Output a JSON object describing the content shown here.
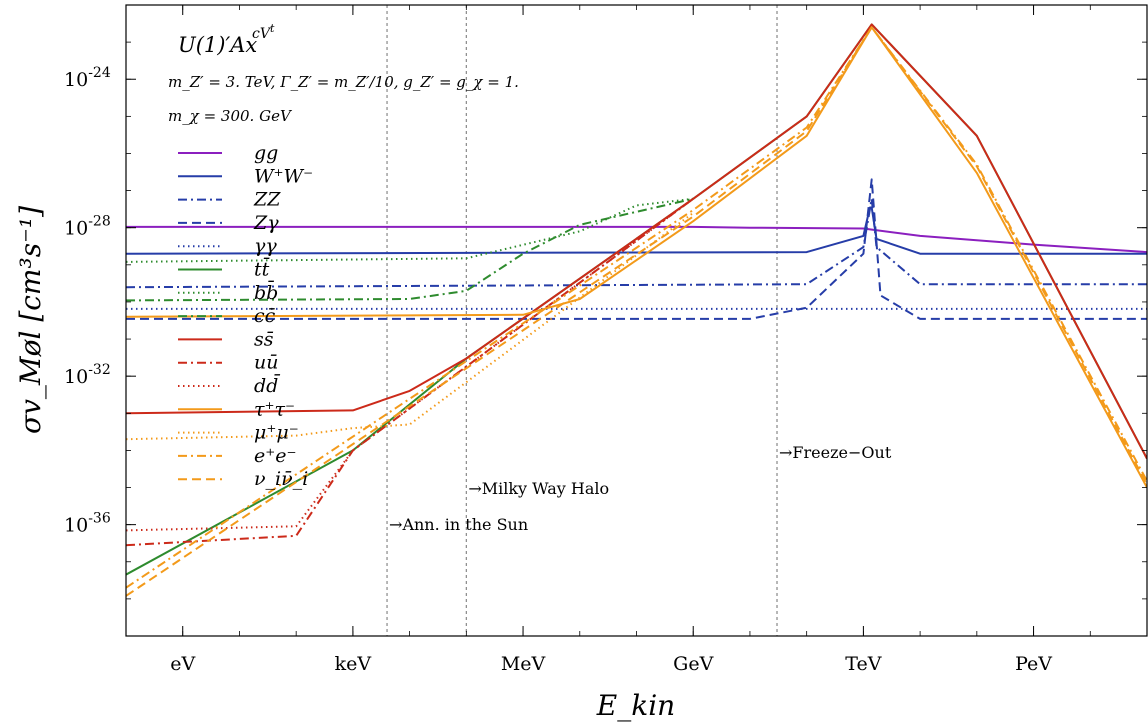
{
  "chart_data": {
    "type": "line",
    "scale": {
      "x": "log",
      "y": "log"
    },
    "xlabel": "E_kin",
    "ylabel": "σv_Møl [cm³s⁻¹]",
    "xlim": [
      0.1,
      100000000000000000
    ],
    "ylim": [
      1e-39,
      1e-22
    ],
    "x_ticks": [
      {
        "label": "eV",
        "value": 1
      },
      {
        "label": "keV",
        "value": 1000
      },
      {
        "label": "MeV",
        "value": 1000000
      },
      {
        "label": "GeV",
        "value": 1000000000
      },
      {
        "label": "TeV",
        "value": 1000000000000
      },
      {
        "label": "PeV",
        "value": 1000000000000000
      }
    ],
    "y_ticks": [
      {
        "label": "10^-24",
        "value": 1e-24
      },
      {
        "label": "10^-28",
        "value": 1e-28
      },
      {
        "label": "10^-32",
        "value": 1e-32
      },
      {
        "label": "10^-36",
        "value": 1e-36
      }
    ],
    "header": {
      "model": "U(1)′Ax",
      "model_sup": "c",
      "model_sup2": "t",
      "model_sup3": "V",
      "params1": "m_Z′ = 3. TeV, Γ_Z′ = m_Z′/10, g_Z′ = g_χ = 1.",
      "params2": "m_χ = 300. GeV"
    },
    "vlines": [
      {
        "x": 4000,
        "label": "→Ann. in the Sun"
      },
      {
        "x": 100000,
        "label": "→Milky Way Halo"
      },
      {
        "x": 30000000000,
        "label": "→Freeze−Out"
      }
    ],
    "legend_position": "left",
    "series": [
      {
        "name": "gg",
        "color": "#8b1fbf",
        "dash": "solid",
        "points": [
          [
            0.1,
            1.05e-28
          ],
          [
            1000000000,
            1.05e-28
          ],
          [
            10000000000,
            1e-28
          ],
          [
            1000000000000,
            9.5e-29
          ],
          [
            10000000000000,
            6e-29
          ],
          [
            1000000000000000,
            3.5e-29
          ],
          [
            100000000000000000,
            2.2e-29
          ]
        ]
      },
      {
        "name": "W⁺W⁻",
        "color": "#263da8",
        "dash": "solid",
        "points": [
          [
            0.1,
            2e-29
          ],
          [
            100000000000,
            2.2e-29
          ],
          [
            1000000000000,
            6e-29
          ],
          [
            1300000000000,
            3.5e-28
          ],
          [
            1400000000000,
            3.5e-28
          ],
          [
            1700000000000,
            5e-29
          ],
          [
            10000000000000,
            2e-29
          ],
          [
            100000000000000000,
            2e-29
          ]
        ]
      },
      {
        "name": "ZZ",
        "color": "#263da8",
        "dash": "dashdot",
        "points": [
          [
            0.1,
            2.5e-30
          ],
          [
            100000000000,
            3e-30
          ],
          [
            1000000000000,
            3e-29
          ],
          [
            1400000000000,
            6e-28
          ],
          [
            1700000000000,
            3e-29
          ],
          [
            10000000000000,
            3e-30
          ],
          [
            100000000000000000,
            3e-30
          ]
        ]
      },
      {
        "name": "Zγ",
        "color": "#263da8",
        "dash": "dashed",
        "points": [
          [
            0.1,
            3.5e-31
          ],
          [
            10000000000,
            3.5e-31
          ],
          [
            100000000000,
            7e-31
          ],
          [
            1000000000000,
            2e-29
          ],
          [
            1400000000000,
            2e-27
          ],
          [
            2000000000000,
            1.5e-30
          ],
          [
            10000000000000,
            3.5e-31
          ],
          [
            100000000000000000,
            3.5e-31
          ]
        ]
      },
      {
        "name": "γγ",
        "color": "#263da8",
        "dash": "dotted",
        "points": [
          [
            0.1,
            6.5e-31
          ],
          [
            100000000000000000,
            6.5e-31
          ]
        ]
      },
      {
        "name": "tt̄",
        "color": "#2e8b2e",
        "dash": "solid",
        "points": [
          [
            0.1,
            4.5e-38
          ],
          [
            1000,
            1e-34
          ],
          [
            100000,
            3e-32
          ],
          [
            1000000000,
            6e-28
          ],
          [
            100000000000,
            1e-25
          ],
          [
            1400000000000,
            3e-23
          ],
          [
            100000000000000,
            3e-26
          ],
          [
            100000000000000000,
            6e-35
          ]
        ]
      },
      {
        "name": "bb̄",
        "color": "#2e8b2e",
        "dash": "dotted",
        "points": [
          [
            0.1,
            1.2e-29
          ],
          [
            100000,
            1.5e-29
          ],
          [
            10000000,
            8e-29
          ],
          [
            100000000,
            4e-28
          ],
          [
            1000000000,
            6e-28
          ]
        ]
      },
      {
        "name": "cc̄",
        "color": "#2e8b2e",
        "dash": "dashdot",
        "points": [
          [
            0.1,
            1.1e-30
          ],
          [
            10000,
            1.2e-30
          ],
          [
            100000,
            2e-30
          ],
          [
            1000000,
            2e-29
          ],
          [
            10000000,
            1.2e-28
          ],
          [
            1000000000,
            6e-28
          ]
        ]
      },
      {
        "name": "ss̄",
        "color": "#cc2a1a",
        "dash": "solid",
        "points": [
          [
            0.1,
            1e-33
          ],
          [
            1000,
            1.2e-33
          ],
          [
            10000,
            4e-33
          ],
          [
            100000,
            3e-32
          ],
          [
            1000000000,
            6e-28
          ],
          [
            100000000000,
            1e-25
          ],
          [
            1400000000000,
            3e-23
          ],
          [
            100000000000000,
            3e-26
          ],
          [
            100000000000000000,
            6e-35
          ]
        ]
      },
      {
        "name": "uū",
        "color": "#cc2a1a",
        "dash": "dashdot",
        "points": [
          [
            0.1,
            2.8e-37
          ],
          [
            100,
            5e-37
          ],
          [
            1000,
            1e-34
          ],
          [
            1000000000,
            6e-28
          ]
        ]
      },
      {
        "name": "dd̄",
        "color": "#cc2a1a",
        "dash": "dotted",
        "points": [
          [
            0.1,
            7e-37
          ],
          [
            100,
            9e-37
          ],
          [
            1000,
            1e-34
          ],
          [
            1000000000,
            6e-28
          ]
        ]
      },
      {
        "name": "τ⁺τ⁻",
        "color": "#f39a1a",
        "dash": "solid",
        "points": [
          [
            0.1,
            4e-31
          ],
          [
            1000000,
            4.5e-31
          ],
          [
            10000000,
            1.2e-30
          ],
          [
            1000000000,
            1.5e-28
          ],
          [
            100000000000,
            3e-26
          ],
          [
            1400000000000,
            2.5e-23
          ],
          [
            100000000000000,
            3e-27
          ],
          [
            100000000000000000,
            1e-35
          ]
        ]
      },
      {
        "name": "μ⁺μ⁻",
        "color": "#f39a1a",
        "dash": "dotted",
        "points": [
          [
            0.1,
            2e-34
          ],
          [
            100,
            2.5e-34
          ],
          [
            1000,
            4e-34
          ],
          [
            10000,
            5e-34
          ],
          [
            1000000000,
            2.5e-28
          ]
        ]
      },
      {
        "name": "e⁺e⁻",
        "color": "#f39a1a",
        "dash": "dashdot",
        "points": [
          [
            0.1,
            2e-38
          ],
          [
            1000000000,
            3e-28
          ],
          [
            100000000000,
            5e-26
          ],
          [
            1400000000000,
            2.5e-23
          ],
          [
            100000000000000,
            5e-27
          ],
          [
            100000000000000000,
            1.5e-35
          ]
        ]
      },
      {
        "name": "ν_iν̄_i",
        "color": "#f39a1a",
        "dash": "dashed",
        "points": [
          [
            0.1,
            1.2e-38
          ],
          [
            1000000000,
            2e-28
          ],
          [
            100000000000,
            4e-26
          ],
          [
            1400000000000,
            2.5e-23
          ],
          [
            100000000000000,
            4.5e-27
          ],
          [
            100000000000000000,
            1.2e-35
          ]
        ]
      }
    ]
  }
}
